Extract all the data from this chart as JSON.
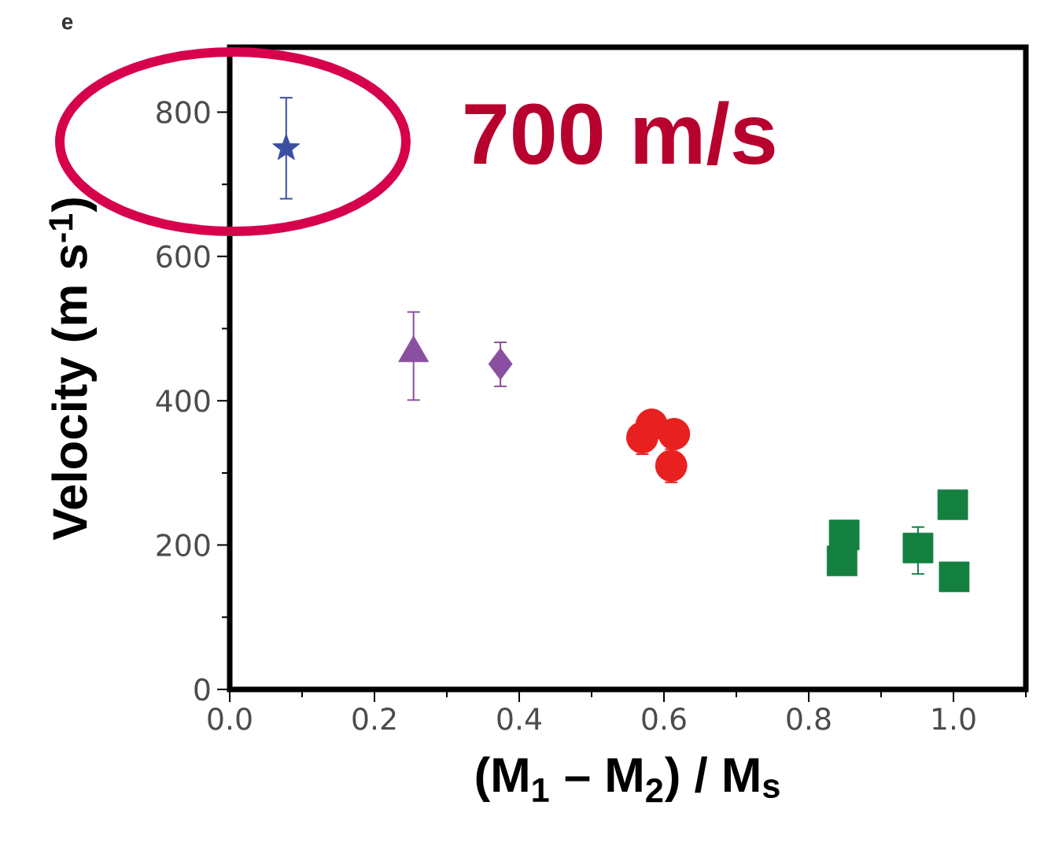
{
  "chart_data": {
    "type": "scatter",
    "xlabel": "(M$_{1}$ – M$_{2}$) / M$_{s}$",
    "ylabel": "Velocity (m s$^{-1}$)",
    "annotations": [
      "e",
      "700 m/s"
    ],
    "xlim": [
      0,
      1.1
    ],
    "ylim": [
      0,
      890
    ],
    "xticks": [
      {
        "value": 0,
        "label": "0.0"
      },
      {
        "value": 0.1,
        "label": null
      },
      {
        "value": 0.2,
        "label": "0.2"
      },
      {
        "value": 0.3,
        "label": null
      },
      {
        "value": 0.4,
        "label": "0.4"
      },
      {
        "value": 0.5,
        "label": null
      },
      {
        "value": 0.6,
        "label": "0.6"
      },
      {
        "value": 0.7,
        "label": null
      },
      {
        "value": 0.8,
        "label": "0.8"
      },
      {
        "value": 0.9,
        "label": null
      },
      {
        "value": 1.0,
        "label": "1.0"
      },
      {
        "value": 1.1,
        "label": null
      }
    ],
    "yticks": [
      0,
      {
        "value": 100,
        "label": null
      },
      200,
      {
        "value": 300,
        "label": null
      },
      400,
      {
        "value": 500,
        "label": null
      },
      600,
      {
        "value": 700,
        "label": null
      },
      800
    ],
    "grid": false,
    "series": [
      {
        "color": "#3b4fa0",
        "marker": "star",
        "x": [
          0.078
        ],
        "values": [
          750
        ],
        "errors": [
          70
        ]
      },
      {
        "color": "#8a4fa0",
        "marker": "triangle",
        "x": [
          0.254
        ],
        "values": [
          466
        ],
        "errors": [
          [
            401,
            523
          ]
        ]
      },
      {
        "color": "#8a4fa0",
        "marker": "diamond",
        "x": [
          0.374
        ],
        "values": [
          451
        ],
        "errors": [
          [
            420,
            481
          ]
        ]
      },
      {
        "color": "#e82020",
        "marker": "circle",
        "x": [
          0.57,
          0.583,
          0.614,
          0.61
        ],
        "values": [
          349,
          367,
          354,
          310
        ],
        "errors": [
          23,
          null,
          null,
          23
        ]
      },
      {
        "color": "#138040",
        "marker": "square",
        "x": [
          0.849,
          0.846,
          0.951,
          0.999,
          1.001
        ],
        "values": [
          214,
          178,
          196,
          256,
          156
        ],
        "errors": [
          null,
          null,
          [
            160,
            225
          ],
          null,
          null
        ]
      }
    ]
  }
}
